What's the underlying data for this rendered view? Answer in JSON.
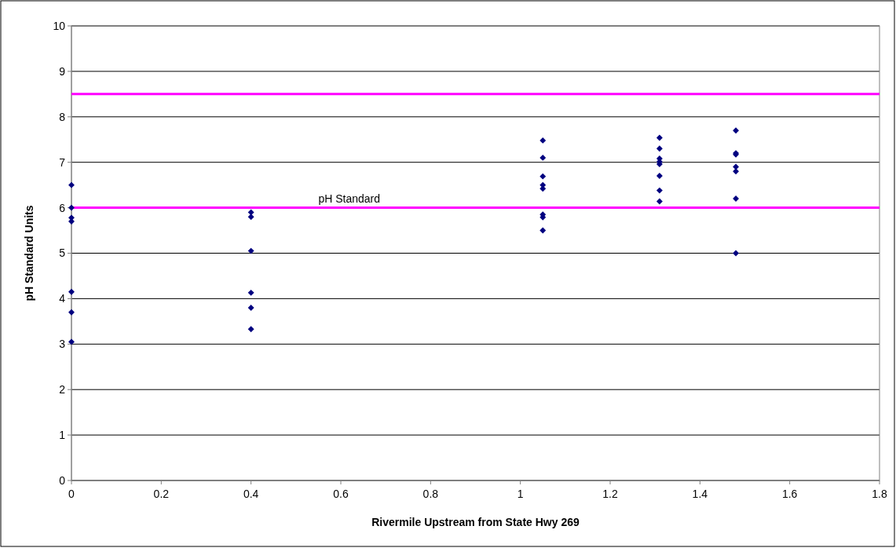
{
  "chart_data": {
    "type": "scatter",
    "xlabel": "Rivermile Upstream from State Hwy 269",
    "ylabel": "pH Standard Units",
    "x": [
      0,
      0,
      0,
      0,
      0,
      0,
      0,
      0.4,
      0.4,
      0.4,
      0.4,
      0.4,
      0.4,
      1.05,
      1.05,
      1.05,
      1.05,
      1.05,
      1.05,
      1.05,
      1.05,
      1.31,
      1.31,
      1.31,
      1.31,
      1.31,
      1.31,
      1.31,
      1.31,
      1.48,
      1.48,
      1.48,
      1.48,
      1.48,
      1.48,
      1.48
    ],
    "series": [
      {
        "color": "#000080",
        "values": [
          6.5,
          6.0,
          5.78,
          5.7,
          4.15,
          3.7,
          3.05,
          5.9,
          5.8,
          5.05,
          4.13,
          3.8,
          3.33,
          7.48,
          7.1,
          6.69,
          6.5,
          6.42,
          5.85,
          5.79,
          5.5,
          7.54,
          7.3,
          7.08,
          7.01,
          6.96,
          6.7,
          6.38,
          6.14,
          7.7,
          7.2,
          7.17,
          6.9,
          6.8,
          6.2,
          5.0
        ]
      }
    ],
    "xlim": [
      0,
      1.8
    ],
    "xticks": [
      0,
      0.2,
      0.4,
      0.6,
      0.8,
      1,
      1.2,
      1.4,
      1.6,
      1.8
    ],
    "ylim": [
      0,
      10
    ],
    "yticks": [
      0,
      1,
      2,
      3,
      4,
      5,
      6,
      7,
      8,
      9,
      10
    ],
    "grid": "y",
    "marker": "diamond",
    "ref_lines": [
      {
        "axis": "y",
        "value": 8.5,
        "color": "#ff00ff"
      },
      {
        "axis": "y",
        "value": 6,
        "label": "pH Standard",
        "color": "#ff00ff"
      }
    ]
  }
}
